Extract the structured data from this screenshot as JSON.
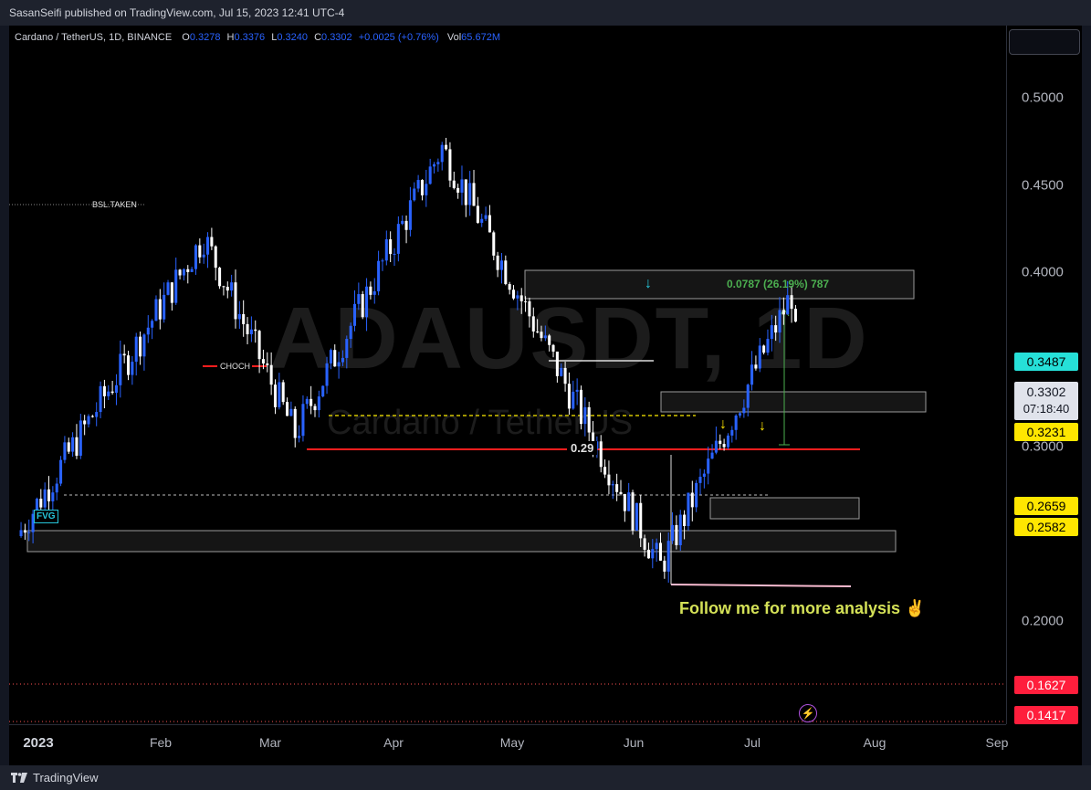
{
  "publish_header": "SasanSeifi published on TradingView.com, Jul 15, 2023 12:41 UTC-4",
  "symbol": {
    "description": "Cardano / TetherUS, 1D, BINANCE",
    "open_label": "O",
    "open": "0.3278",
    "high_label": "H",
    "high": "0.3376",
    "low_label": "L",
    "low": "0.3240",
    "close_label": "C",
    "close": "0.3302",
    "change": "+0.0025 (+0.76%)",
    "volume_label": "Vol",
    "volume": "65.672M"
  },
  "watermark": {
    "ticker": "ADAUSDT, 1D",
    "name": "Cardano / TetherUS"
  },
  "price_axis": {
    "ticks": [
      "0.5000",
      "0.4500",
      "0.4000",
      "0.3000",
      "0.2000"
    ],
    "tags": {
      "green": "0.3487",
      "current": "0.3302",
      "countdown": "07:18:40",
      "yellow_1": "0.3231",
      "yellow_2": "0.2659",
      "yellow_3": "0.2582",
      "red_1": "0.1627",
      "red_2": "0.1417"
    }
  },
  "time_axis": {
    "year": "2023",
    "months": [
      "Feb",
      "Mar",
      "Apr",
      "May",
      "Jun",
      "Jul",
      "Aug",
      "Sep"
    ]
  },
  "annotations": {
    "bsl": "BSL.TAKEN",
    "choch": "CHOCH",
    "level": "0.29",
    "fvg": "FVG",
    "measure": "0.0787 (26.19%) 787",
    "follow": "Follow me for more analysis ✌"
  },
  "footer": {
    "brand": "TradingView"
  },
  "colors": {
    "bull": "#2962ff",
    "bear": "#ffffff",
    "red_line": "#ff1e1e",
    "teal": "#26c6da",
    "yellow": "#ffe600",
    "green": "#4caf50"
  },
  "chart_data": {
    "type": "candlestick",
    "title": "Cardano / TetherUS, 1D, BINANCE",
    "xlabel": "",
    "ylabel": "",
    "ylim": [
      0.14,
      0.53
    ],
    "x_range": [
      "2022-12-28",
      "2023-09-05"
    ],
    "key_levels": [
      0.3487,
      0.3302,
      0.3231,
      0.2659,
      0.2582,
      0.1627,
      0.1417,
      0.29
    ],
    "swing_points": [
      {
        "date": "2022-12-30",
        "price": 0.245
      },
      {
        "date": "2023-02-15",
        "price": 0.412
      },
      {
        "date": "2023-03-10",
        "price": 0.302
      },
      {
        "date": "2023-04-16",
        "price": 0.462
      },
      {
        "date": "2023-06-10",
        "price": 0.228
      },
      {
        "date": "2023-07-13",
        "price": 0.38
      },
      {
        "date": "2023-07-15",
        "price": 0.3302
      }
    ]
  }
}
